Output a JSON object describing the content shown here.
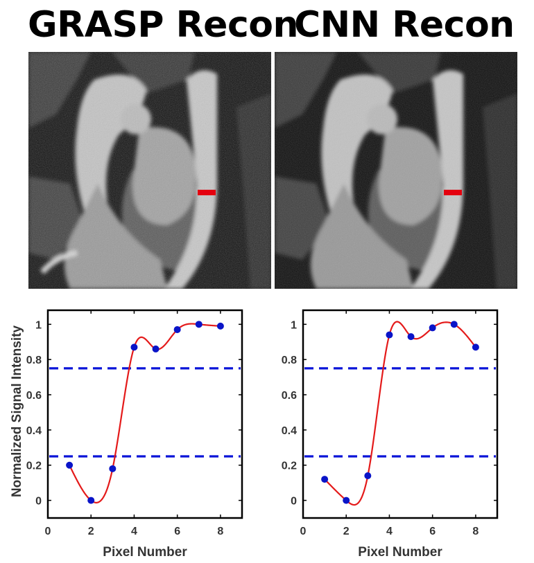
{
  "panels": [
    {
      "title": "GRASP Recon"
    },
    {
      "title": "CNN Recon"
    }
  ],
  "colors": {
    "marker": "#0a14c8",
    "curve": "#e41a1a",
    "threshold": "#0a14d8",
    "roi": "#e4000f"
  },
  "chart_data": [
    {
      "type": "scatter",
      "title": "",
      "xlabel": "Pixel Number",
      "ylabel": "Normalized Signal Intensity",
      "xlim": [
        0,
        9
      ],
      "ylim": [
        -0.1,
        1.08
      ],
      "xticks": [
        0,
        2,
        4,
        6,
        8
      ],
      "yticks": [
        0,
        0.2,
        0.4,
        0.6,
        0.8,
        1
      ],
      "x": [
        1,
        2,
        3,
        4,
        5,
        6,
        7,
        8
      ],
      "y": [
        0.2,
        0.0,
        0.18,
        0.87,
        0.86,
        0.97,
        1.0,
        0.99
      ],
      "hlines": [
        0.25,
        0.75
      ],
      "fit": "smooth-interpolation"
    },
    {
      "type": "scatter",
      "title": "",
      "xlabel": "Pixel Number",
      "ylabel": "",
      "xlim": [
        0,
        9
      ],
      "ylim": [
        -0.1,
        1.08
      ],
      "xticks": [
        0,
        2,
        4,
        6,
        8
      ],
      "yticks": [
        0,
        0.2,
        0.4,
        0.6,
        0.8,
        1
      ],
      "x": [
        1,
        2,
        3,
        4,
        5,
        6,
        7,
        8
      ],
      "y": [
        0.12,
        0.0,
        0.14,
        0.94,
        0.93,
        0.98,
        1.0,
        0.87
      ],
      "hlines": [
        0.25,
        0.75
      ],
      "fit": "smooth-interpolation"
    }
  ]
}
